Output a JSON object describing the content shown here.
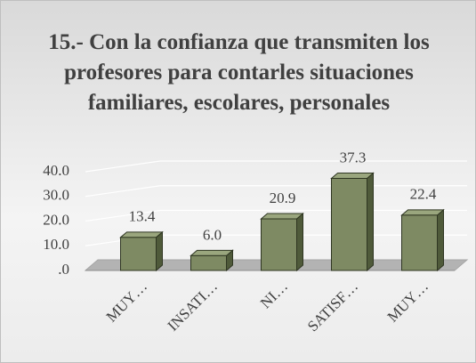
{
  "chart_data": {
    "type": "bar3d",
    "title": "15.- Con la confianza que transmiten los profesores para contarles situaciones familiares, escolares, personales",
    "categories": [
      "MUY…",
      "INSATI…",
      "NI…",
      "SATISF…",
      "MUY…"
    ],
    "values": [
      13.4,
      6.0,
      20.9,
      37.3,
      22.4
    ],
    "value_labels": [
      "13.4",
      "6.0",
      "20.9",
      "37.3",
      "22.4"
    ],
    "color": "#7e8a63",
    "ylim": [
      0,
      40
    ],
    "yticks": [
      {
        "value": 0,
        "label": ".0"
      },
      {
        "value": 10,
        "label": "10.0"
      },
      {
        "value": 20,
        "label": "20.0"
      },
      {
        "value": 30,
        "label": "30.0"
      },
      {
        "value": 40,
        "label": "40.0"
      }
    ],
    "grid": true
  }
}
